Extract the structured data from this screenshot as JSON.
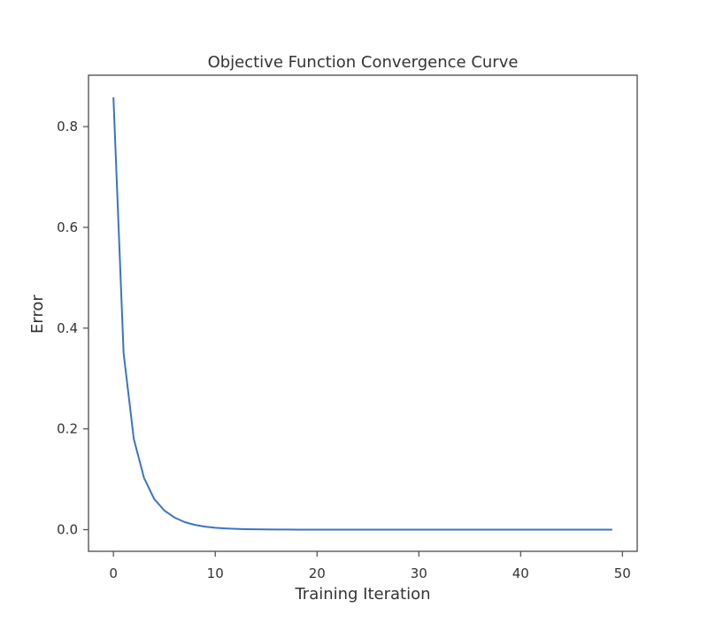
{
  "chart_data": {
    "type": "line",
    "title": "Objective Function Convergence Curve",
    "xlabel": "Training Iteration",
    "ylabel": "Error",
    "xlim": [
      -2.45,
      51.45
    ],
    "ylim": [
      -0.043,
      0.902
    ],
    "xticks": [
      0,
      10,
      20,
      30,
      40,
      50
    ],
    "yticks": [
      0.0,
      0.2,
      0.4,
      0.6,
      0.8
    ],
    "ytick_labels": [
      "0.0",
      "0.2",
      "0.4",
      "0.6",
      "0.8"
    ],
    "grid": false,
    "line_color": "#3a74c4",
    "series": [
      {
        "x": [
          0,
          1,
          2,
          3,
          4,
          5,
          6,
          7,
          8,
          9,
          10,
          11,
          12,
          13,
          14,
          15,
          16,
          17,
          18,
          19,
          20,
          21,
          22,
          23,
          24,
          25,
          26,
          27,
          28,
          29,
          30,
          31,
          32,
          33,
          34,
          35,
          36,
          37,
          38,
          39,
          40,
          41,
          42,
          43,
          44,
          45,
          46,
          47,
          48,
          49
        ],
        "values": [
          0.858,
          0.35,
          0.18,
          0.103,
          0.061,
          0.038,
          0.024,
          0.015,
          0.0095,
          0.006,
          0.0038,
          0.0024,
          0.0015,
          0.001,
          0.0006,
          0.0004,
          0.00025,
          0.00016,
          0.0001,
          6e-05,
          4e-05,
          3e-05,
          2e-05,
          1e-05,
          1e-05,
          0,
          0,
          0,
          0,
          0,
          0,
          0,
          0,
          0,
          0,
          0,
          0,
          0,
          0,
          0,
          0,
          0,
          0,
          0,
          0,
          0,
          0,
          0,
          0,
          0
        ]
      }
    ]
  }
}
